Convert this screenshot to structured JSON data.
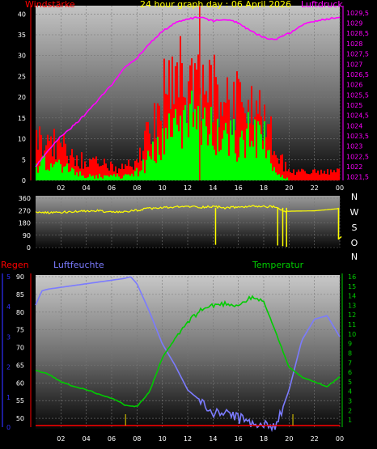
{
  "title": "24 hour graph day : 06 April 2026",
  "colors": {
    "wind_avg": "#00ff00",
    "wind_gust": "#ff0000",
    "pressure": "#ff00ff",
    "direction": "#ffff00",
    "humidity": "#7b7bff",
    "temperature": "#00cc00",
    "rain": "#ff0000",
    "rain_axis": "#3030ff",
    "text_white": "#ffffff",
    "grid": "#777777"
  },
  "chart_data": [
    {
      "type": "bar",
      "name": "wind-pressure",
      "left_label": "Windstärke",
      "right_label": "Luftdruck",
      "x_ticks": [
        "02",
        "04",
        "06",
        "08",
        "10",
        "12",
        "14",
        "16",
        "18",
        "20",
        "22",
        "00"
      ],
      "left_ticks": [
        "0",
        "5",
        "10",
        "15",
        "20",
        "25",
        "30",
        "35",
        "40"
      ],
      "right_ticks": [
        "1021,5",
        "1022",
        "1022,5",
        "1023",
        "1023,5",
        "1024",
        "1024,5",
        "1025",
        "1025,5",
        "1026",
        "1026,5",
        "1027",
        "1027,5",
        "1028",
        "1028,5",
        "1029",
        "1029,5"
      ],
      "wind_ylim": [
        0,
        42
      ],
      "pressure_ylim": [
        1021.33,
        1029.85
      ],
      "gust_profile": [
        [
          0,
          10
        ],
        [
          1,
          9
        ],
        [
          2,
          8
        ],
        [
          3,
          6
        ],
        [
          4,
          4
        ],
        [
          5,
          4
        ],
        [
          6,
          3
        ],
        [
          7,
          3
        ],
        [
          8,
          5
        ],
        [
          9,
          12
        ],
        [
          10,
          20
        ],
        [
          11,
          24
        ],
        [
          12,
          24
        ],
        [
          13,
          22
        ],
        [
          14,
          21
        ],
        [
          15,
          20
        ],
        [
          16,
          19
        ],
        [
          17,
          18
        ],
        [
          18,
          16
        ],
        [
          19,
          6
        ],
        [
          20,
          2
        ],
        [
          21,
          2
        ],
        [
          22,
          2
        ],
        [
          23,
          2
        ],
        [
          24,
          2
        ]
      ],
      "avg_profile": [
        [
          0,
          4
        ],
        [
          1,
          4
        ],
        [
          2,
          3
        ],
        [
          3,
          2
        ],
        [
          4,
          1
        ],
        [
          5,
          1
        ],
        [
          6,
          1
        ],
        [
          7,
          1
        ],
        [
          8,
          2
        ],
        [
          9,
          6
        ],
        [
          10,
          11
        ],
        [
          11,
          13
        ],
        [
          12,
          14
        ],
        [
          13,
          13
        ],
        [
          14,
          12
        ],
        [
          15,
          11
        ],
        [
          16,
          11
        ],
        [
          17,
          10
        ],
        [
          18,
          9
        ],
        [
          19,
          2
        ],
        [
          20,
          0
        ],
        [
          21,
          0
        ],
        [
          22,
          0
        ],
        [
          23,
          0
        ],
        [
          24,
          0
        ]
      ],
      "peak_gust": {
        "hour": 12.9,
        "value": 42
      },
      "pressure": [
        [
          0,
          1022.0
        ],
        [
          1,
          1022.8
        ],
        [
          2,
          1023.5
        ],
        [
          3,
          1024.0
        ],
        [
          4,
          1024.6
        ],
        [
          5,
          1025.3
        ],
        [
          6,
          1026.0
        ],
        [
          7,
          1026.8
        ],
        [
          8,
          1027.3
        ],
        [
          9,
          1028.0
        ],
        [
          10,
          1028.6
        ],
        [
          11,
          1029.0
        ],
        [
          12,
          1029.2
        ],
        [
          13,
          1029.3
        ],
        [
          14,
          1029.1
        ],
        [
          15,
          1029.2
        ],
        [
          16,
          1029.0
        ],
        [
          17,
          1028.6
        ],
        [
          18,
          1028.3
        ],
        [
          19,
          1028.2
        ],
        [
          20,
          1028.5
        ],
        [
          21,
          1028.9
        ],
        [
          22,
          1029.1
        ],
        [
          23,
          1029.2
        ],
        [
          24,
          1029.3
        ]
      ]
    },
    {
      "type": "line",
      "name": "wind-direction",
      "y_ticks": [
        "0",
        "90",
        "180",
        "270",
        "360"
      ],
      "compass": [
        "N",
        "W",
        "S",
        "O",
        "N"
      ],
      "ylim": [
        0,
        360
      ],
      "x": [
        0,
        1,
        2,
        3,
        4,
        5,
        6,
        7,
        8,
        9,
        10,
        11,
        12,
        13,
        14,
        15,
        16,
        17,
        18,
        19,
        19.6,
        20,
        22,
        24
      ],
      "y": [
        260,
        255,
        258,
        262,
        265,
        270,
        255,
        260,
        272,
        285,
        290,
        295,
        300,
        295,
        300,
        290,
        295,
        300,
        300,
        295,
        260,
        265,
        268,
        285
      ],
      "spikes": [
        [
          14.2,
          20
        ],
        [
          19.1,
          15
        ],
        [
          19.5,
          10
        ],
        [
          19.8,
          5
        ],
        [
          23.9,
          60
        ]
      ]
    },
    {
      "type": "line",
      "name": "humidity-temperature-rain",
      "labels": {
        "rain": "Regen",
        "humidity": "Luftfeuchte",
        "temperature": "Temperatur"
      },
      "rain_ticks": [
        "0",
        "1",
        "2",
        "3",
        "4",
        "5"
      ],
      "humidity_ticks": [
        "50",
        "55",
        "60",
        "65",
        "70",
        "75",
        "80",
        "85",
        "90"
      ],
      "temperature_ticks": [
        "1",
        "2",
        "3",
        "4",
        "5",
        "6",
        "7",
        "8",
        "9",
        "10",
        "11",
        "12",
        "13",
        "14",
        "15",
        "16"
      ],
      "humidity_ylim": [
        47.5,
        90
      ],
      "temperature_ylim": [
        0.25,
        16
      ],
      "humidity": {
        "x": [
          0,
          0.5,
          1,
          2,
          3,
          4,
          5,
          6,
          7,
          7.5,
          8,
          9,
          10,
          11,
          12,
          13,
          14,
          15,
          16,
          17,
          18,
          19,
          20,
          21,
          22,
          23,
          24
        ],
        "y": [
          82,
          86,
          86.5,
          87,
          87.5,
          88,
          88.5,
          89,
          89.5,
          90,
          88,
          80,
          71,
          65,
          58,
          55,
          51,
          52,
          50,
          49,
          48,
          48,
          58,
          72,
          78,
          79,
          73
        ]
      },
      "temperature": {
        "x": [
          0,
          1,
          2,
          3,
          4,
          5,
          6,
          7,
          8,
          9,
          10,
          11,
          12,
          13,
          14,
          15,
          16,
          17,
          18,
          19,
          20,
          21,
          22,
          23,
          24
        ],
        "y": [
          6.2,
          5.8,
          5.0,
          4.5,
          4.2,
          3.7,
          3.3,
          2.6,
          2.4,
          4.0,
          7.5,
          9.5,
          11.2,
          12.5,
          13.0,
          13.2,
          13.0,
          13.8,
          13.4,
          10.0,
          6.5,
          5.5,
          5.0,
          4.5,
          5.5
        ]
      },
      "rain_marks": [
        7.1,
        20.3
      ]
    }
  ]
}
